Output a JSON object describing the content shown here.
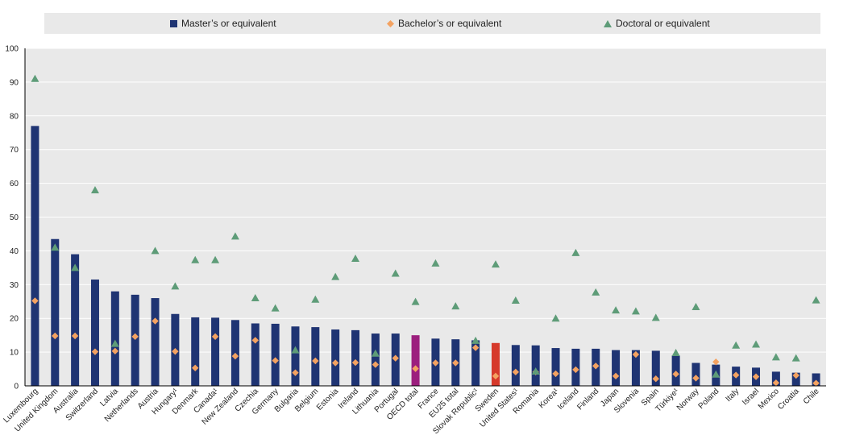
{
  "colors": {
    "masters": "#1f3473",
    "bachelors": "#f4a261",
    "doctoral": "#5e9c78",
    "oecd_highlight": "#9c1f7e",
    "country_highlight": "#d6392b",
    "plot_background": "#e9e9e9",
    "gridline": "#ffffff"
  },
  "legend": [
    {
      "key": "masters",
      "label": "Master’s or equivalent",
      "marker": "square"
    },
    {
      "key": "bachelors",
      "label": "Bachelor’s or equivalent",
      "marker": "diamond"
    },
    {
      "key": "doctoral",
      "label": "Doctoral or equivalent",
      "marker": "triangle"
    }
  ],
  "chart_data": {
    "type": "bar",
    "ylim": [
      0,
      100
    ],
    "yticks": [
      0,
      10,
      20,
      30,
      40,
      50,
      60,
      70,
      80,
      90,
      100
    ],
    "grid": true,
    "legend_position": "top",
    "categories": [
      "Luxembourg",
      "United Kingdom",
      "Australia",
      "Switzerland",
      "Latvia",
      "Netherlands",
      "Austria",
      "Hungary¹",
      "Denmark",
      "Canada¹",
      "New Zealand",
      "Czechia",
      "Germany",
      "Bulgaria",
      "Belgium",
      "Estonia",
      "Ireland",
      "Lithuania",
      "Portugal",
      "OECD total",
      "France",
      "EU25 total",
      "Slovak Republic¹",
      "Sweden",
      "United States¹",
      "Romania",
      "Korea¹",
      "Iceland",
      "Finland",
      "Japan",
      "Slovenia",
      "Spain",
      "Türkiye¹",
      "Norway",
      "Poland",
      "Italy",
      "Israel",
      "Mexico",
      "Croatia",
      "Chile"
    ],
    "highlights": {
      "OECD total": "oecd_highlight",
      "Sweden": "country_highlight"
    },
    "series": [
      {
        "name": "Master’s or equivalent",
        "type": "bar",
        "values": [
          77,
          43.5,
          39,
          31.5,
          28,
          27,
          26,
          21.3,
          20.3,
          20.2,
          19.5,
          18.5,
          18.4,
          17.6,
          17.4,
          16.7,
          16.5,
          15.5,
          15.5,
          15,
          14,
          13.8,
          13.5,
          12.7,
          12.1,
          12,
          11.2,
          11,
          11,
          10.6,
          10.6,
          10.4,
          9,
          6.8,
          6.3,
          5.7,
          5.4,
          4.2,
          3.9,
          3.7
        ]
      },
      {
        "name": "Bachelor’s or equivalent",
        "type": "diamond",
        "values": [
          25.2,
          14.8,
          14.8,
          10.1,
          10.3,
          14.6,
          19.2,
          10.2,
          5.3,
          14.6,
          8.8,
          13.5,
          7.5,
          3.9,
          7.4,
          6.8,
          6.9,
          6.3,
          8.2,
          5.1,
          6.8,
          6.8,
          11.3,
          2.9,
          4.1,
          4.1,
          3.6,
          4.8,
          5.9,
          2.9,
          9.3,
          2.1,
          3.5,
          2.3,
          7.1,
          3.2,
          2.7,
          0.9,
          3.1,
          0.8
        ]
      },
      {
        "name": "Doctoral or equivalent",
        "type": "triangle",
        "values": [
          91,
          41,
          35,
          58,
          12.5,
          null,
          40,
          29.5,
          37.3,
          37.3,
          44.3,
          26,
          23,
          10.6,
          25.6,
          32.3,
          37.7,
          9.6,
          33.3,
          24.9,
          36.3,
          23.6,
          13.4,
          36,
          25.3,
          4.3,
          20,
          39.4,
          27.7,
          22.4,
          22.1,
          20.2,
          9.8,
          23.4,
          3.4,
          12,
          12.3,
          8.5,
          8.2,
          25.4
        ]
      }
    ]
  }
}
